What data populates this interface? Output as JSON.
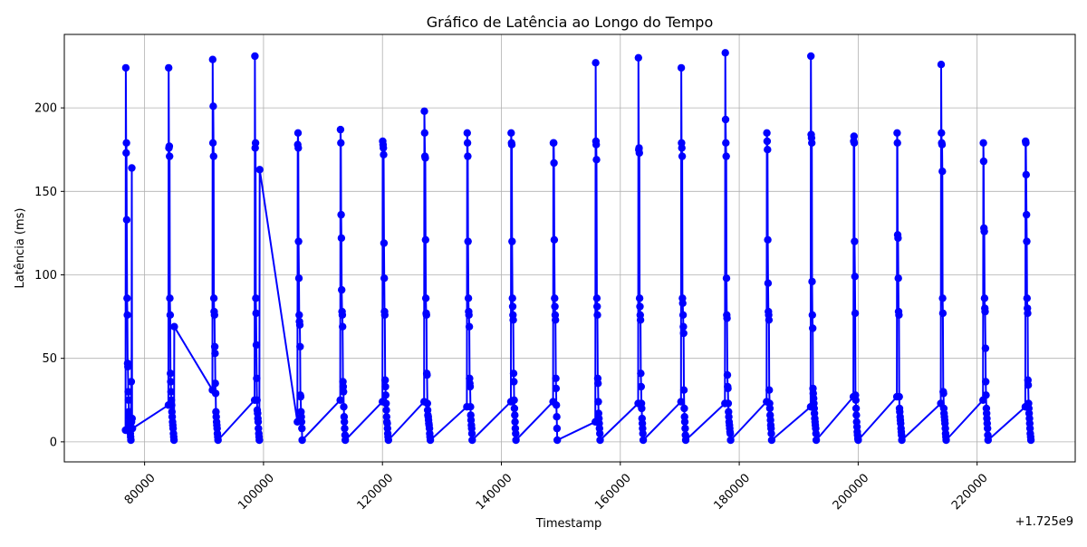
{
  "chart_data": {
    "type": "line",
    "title": "Gráfico de Latência ao Longo do Tempo",
    "xlabel": "Timestamp",
    "ylabel": "Latência (ms)",
    "x_offset_label": "+1.725e9",
    "xlim": [
      66500,
      236500
    ],
    "ylim": [
      -12,
      244
    ],
    "x_ticks": [
      {
        "value": 80000,
        "label": "80000"
      },
      {
        "value": 100000,
        "label": "100000"
      },
      {
        "value": 120000,
        "label": "120000"
      },
      {
        "value": 140000,
        "label": "140000"
      },
      {
        "value": 160000,
        "label": "160000"
      },
      {
        "value": 180000,
        "label": "180000"
      },
      {
        "value": 200000,
        "label": "200000"
      },
      {
        "value": 220000,
        "label": "220000"
      }
    ],
    "y_ticks": [
      {
        "value": 0,
        "label": "0"
      },
      {
        "value": 50,
        "label": "50"
      },
      {
        "value": 100,
        "label": "100"
      },
      {
        "value": 150,
        "label": "150"
      },
      {
        "value": 200,
        "label": "200"
      }
    ],
    "grid": true,
    "line_color": "#0000ff",
    "marker": "circle",
    "series": [
      {
        "x": [
          76800,
          76850,
          76900,
          76950,
          77000,
          77050,
          77100,
          77150,
          77200,
          77250,
          77300,
          77350,
          77400,
          77450,
          77500,
          77550,
          77600,
          77650,
          77700,
          77750,
          77800,
          77850,
          77900,
          77950,
          84000,
          84050,
          84100,
          84150,
          84200,
          84250,
          84300,
          84350,
          84400,
          84450,
          84500,
          84550,
          84600,
          84650,
          84700,
          84750,
          84800,
          84850,
          84900,
          84950,
          85000,
          91400,
          91450,
          91500,
          91550,
          91600,
          91650,
          91700,
          91750,
          91800,
          91850,
          91900,
          91950,
          92000,
          92050,
          92100,
          92150,
          92200,
          92250,
          92300,
          92350,
          98500,
          98550,
          98600,
          98650,
          98700,
          98750,
          98800,
          98850,
          98900,
          98950,
          99000,
          99050,
          99100,
          99150,
          99200,
          99250,
          99300,
          99350,
          105700,
          105750,
          105800,
          105850,
          105900,
          105950,
          106000,
          106050,
          106100,
          106150,
          106200,
          106250,
          106300,
          106350,
          106400,
          106450,
          106500,
          112900,
          112950,
          113000,
          113050,
          113100,
          113150,
          113200,
          113250,
          113300,
          113350,
          113400,
          113450,
          113500,
          113550,
          113600,
          113650,
          113700,
          113750,
          120000,
          120050,
          120100,
          120150,
          120200,
          120250,
          120300,
          120350,
          120400,
          120450,
          120500,
          120550,
          120600,
          120650,
          120700,
          120750,
          120800,
          120850,
          120900,
          120950,
          121000,
          127000,
          127050,
          127100,
          127150,
          127200,
          127250,
          127300,
          127350,
          127400,
          127450,
          127500,
          127550,
          127600,
          127650,
          127700,
          127750,
          127800,
          127850,
          127900,
          127950,
          128000,
          128050,
          134200,
          134250,
          134300,
          134350,
          134400,
          134450,
          134500,
          134550,
          134600,
          134650,
          134700,
          134750,
          134800,
          134850,
          134900,
          134950,
          135000,
          135050,
          135100,
          141600,
          141650,
          141700,
          141750,
          141800,
          141850,
          141900,
          141950,
          142000,
          142050,
          142100,
          142150,
          142200,
          142250,
          142300,
          142350,
          142400,
          142450,
          148700,
          148750,
          148800,
          148850,
          148900,
          148950,
          149000,
          149050,
          149100,
          149150,
          149200,
          149250,
          149300,
          149350,
          149400,
          155800,
          155850,
          155900,
          155950,
          156000,
          156050,
          156100,
          156150,
          156200,
          156250,
          156300,
          156350,
          156400,
          156450,
          156500,
          156550,
          156600,
          163000,
          163050,
          163100,
          163150,
          163200,
          163250,
          163300,
          163350,
          163400,
          163450,
          163500,
          163550,
          163600,
          163650,
          163700,
          163750,
          163800,
          163850,
          170200,
          170250,
          170300,
          170350,
          170400,
          170450,
          170500,
          170550,
          170600,
          170650,
          170700,
          170750,
          170800,
          170850,
          170900,
          170950,
          171000,
          177600,
          177650,
          177700,
          177750,
          177800,
          177850,
          177900,
          177950,
          178000,
          178050,
          178100,
          178150,
          178200,
          178250,
          178300,
          178350,
          178400,
          178450,
          178500,
          178550,
          184600,
          184650,
          184700,
          184750,
          184800,
          184850,
          184900,
          184950,
          185000,
          185050,
          185100,
          185150,
          185200,
          185250,
          185300,
          185350,
          185400,
          185450,
          192000,
          192050,
          192100,
          192150,
          192200,
          192250,
          192300,
          192350,
          192400,
          192450,
          192500,
          192550,
          192600,
          192650,
          192700,
          192750,
          192800,
          192850,
          192900,
          192950,
          199200,
          199250,
          199300,
          199350,
          199400,
          199450,
          199500,
          199550,
          199600,
          199650,
          199700,
          199750,
          199800,
          199850,
          199900,
          199950,
          200000,
          206500,
          206550,
          206600,
          206650,
          206700,
          206750,
          206800,
          206850,
          206900,
          206950,
          207000,
          207050,
          207100,
          207150,
          207200,
          207250,
          207300,
          207350,
          213900,
          213950,
          214000,
          214050,
          214100,
          214150,
          214200,
          214250,
          214300,
          214350,
          214400,
          214450,
          214500,
          214550,
          214600,
          214650,
          214700,
          214750,
          214800,
          221000,
          221050,
          221100,
          221150,
          221200,
          221250,
          221300,
          221350,
          221400,
          221450,
          221500,
          221550,
          221600,
          221650,
          221700,
          221750,
          221800,
          221850,
          228100,
          228150,
          228200,
          228250,
          228300,
          228350,
          228400,
          228450,
          228500,
          228550,
          228600,
          228650,
          228700,
          228750,
          228800,
          228850,
          228900,
          228950,
          229000,
          229050
        ],
        "y": [
          7,
          224,
          173,
          179,
          133,
          86,
          76,
          47,
          45,
          30,
          25,
          18,
          15,
          12,
          10,
          8,
          5,
          3,
          1,
          36,
          12,
          164,
          14,
          8,
          22,
          224,
          176,
          177,
          171,
          86,
          76,
          41,
          36,
          30,
          25,
          22,
          18,
          15,
          12,
          10,
          8,
          5,
          3,
          1,
          69,
          31,
          229,
          179,
          201,
          171,
          86,
          78,
          76,
          57,
          53,
          35,
          29,
          18,
          15,
          12,
          10,
          8,
          5,
          3,
          1,
          25,
          231,
          176,
          179,
          86,
          77,
          58,
          38,
          25,
          19,
          17,
          14,
          12,
          8,
          5,
          3,
          1,
          163,
          12,
          178,
          185,
          176,
          120,
          98,
          76,
          72,
          70,
          57,
          28,
          27,
          18,
          15,
          12,
          8,
          1,
          25,
          187,
          179,
          136,
          122,
          91,
          78,
          76,
          69,
          36,
          33,
          30,
          21,
          15,
          12,
          8,
          4,
          1,
          24,
          180,
          178,
          176,
          172,
          119,
          98,
          78,
          76,
          37,
          33,
          28,
          23,
          19,
          15,
          12,
          11,
          8,
          5,
          3,
          1,
          24,
          198,
          185,
          171,
          170,
          121,
          86,
          77,
          76,
          41,
          40,
          23,
          19,
          16,
          15,
          13,
          11,
          10,
          8,
          5,
          3,
          1,
          21,
          185,
          179,
          171,
          120,
          86,
          78,
          76,
          69,
          38,
          35,
          33,
          21,
          16,
          13,
          10,
          8,
          5,
          1,
          24,
          185,
          179,
          178,
          120,
          86,
          81,
          76,
          73,
          41,
          36,
          25,
          20,
          16,
          12,
          8,
          5,
          1,
          24,
          179,
          179,
          167,
          121,
          86,
          81,
          76,
          73,
          38,
          32,
          22,
          15,
          8,
          1,
          12,
          227,
          180,
          178,
          169,
          86,
          81,
          76,
          38,
          35,
          24,
          17,
          14,
          11,
          8,
          5,
          1,
          23,
          230,
          175,
          176,
          173,
          86,
          81,
          76,
          73,
          41,
          33,
          23,
          20,
          14,
          11,
          8,
          5,
          1,
          24,
          224,
          179,
          176,
          171,
          86,
          83,
          76,
          69,
          65,
          31,
          20,
          15,
          12,
          8,
          4,
          1,
          23,
          233,
          193,
          179,
          171,
          98,
          76,
          74,
          40,
          33,
          32,
          23,
          18,
          15,
          12,
          10,
          8,
          6,
          5,
          1,
          24,
          185,
          180,
          175,
          121,
          95,
          78,
          76,
          73,
          31,
          23,
          20,
          16,
          13,
          10,
          8,
          5,
          1,
          21,
          231,
          184,
          182,
          179,
          96,
          76,
          68,
          32,
          29,
          26,
          23,
          20,
          17,
          14,
          12,
          10,
          8,
          5,
          1,
          27,
          180,
          183,
          179,
          120,
          99,
          77,
          28,
          25,
          20,
          16,
          12,
          9,
          6,
          4,
          2,
          1,
          27,
          185,
          179,
          124,
          122,
          98,
          78,
          76,
          27,
          20,
          18,
          15,
          13,
          11,
          8,
          6,
          4,
          1,
          23,
          226,
          185,
          179,
          178,
          162,
          86,
          77,
          30,
          29,
          20,
          17,
          15,
          13,
          11,
          8,
          5,
          3,
          1,
          25,
          179,
          168,
          128,
          126,
          86,
          80,
          78,
          56,
          36,
          28,
          20,
          17,
          14,
          11,
          8,
          4,
          1,
          21,
          180,
          179,
          160,
          136,
          120,
          86,
          80,
          77,
          37,
          34,
          23,
          20,
          17,
          14,
          11,
          8,
          5,
          3,
          1
        ]
      }
    ]
  }
}
